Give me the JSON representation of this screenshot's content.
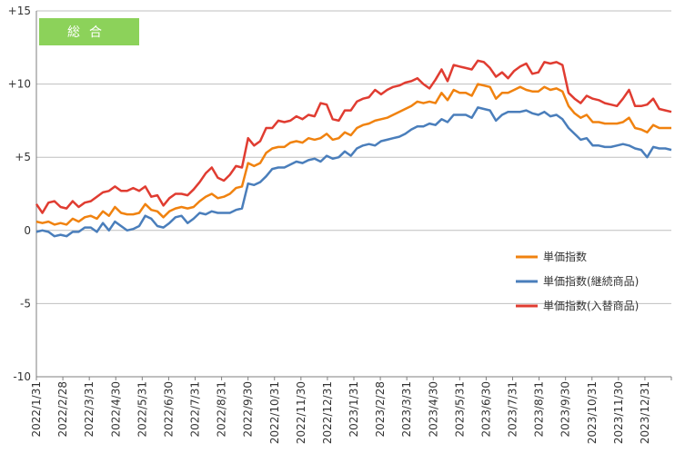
{
  "chart_data": {
    "type": "line",
    "title": "",
    "badge": "総合",
    "colors": {
      "badge": "#8cd25a",
      "grid": "#bfbfbf",
      "axis": "#7f7f7f"
    },
    "ylim": [
      -10,
      15
    ],
    "yticks": [
      {
        "value": 15,
        "label": "+15"
      },
      {
        "value": 10,
        "label": "+10"
      },
      {
        "value": 5,
        "label": "+5"
      },
      {
        "value": 0,
        "label": "0"
      },
      {
        "value": -5,
        "label": "-5"
      },
      {
        "value": -10,
        "label": "-10"
      }
    ],
    "xtick_labels": [
      "2022/1/31",
      "2022/2/28",
      "2022/3/31",
      "2022/4/30",
      "2022/5/31",
      "2022/6/30",
      "2022/7/31",
      "2022/8/31",
      "2022/9/30",
      "2022/10/31",
      "2022/11/30",
      "2022/12/31",
      "2023/1/31",
      "2023/2/28",
      "2023/3/31",
      "2023/4/30",
      "2023/5/31",
      "2023/6/30",
      "2023/7/31",
      "2023/8/31",
      "2023/9/30",
      "2023/10/31",
      "2023/11/30",
      "2023/12/31"
    ],
    "grid": "horizontal",
    "legend_position": "right",
    "series": [
      {
        "name": "単価指数",
        "color": "#f0820f",
        "values": [
          0.6,
          0.5,
          0.6,
          0.4,
          0.5,
          0.4,
          0.8,
          0.6,
          0.9,
          1.0,
          0.8,
          1.3,
          1.0,
          1.6,
          1.2,
          1.1,
          1.1,
          1.2,
          1.8,
          1.4,
          1.3,
          0.9,
          1.3,
          1.5,
          1.6,
          1.5,
          1.6,
          2.0,
          2.3,
          2.5,
          2.2,
          2.3,
          2.5,
          2.9,
          3.0,
          4.6,
          4.4,
          4.6,
          5.3,
          5.6,
          5.7,
          5.7,
          6.0,
          6.1,
          6.0,
          6.3,
          6.2,
          6.3,
          6.6,
          6.2,
          6.3,
          6.7,
          6.5,
          7.0,
          7.2,
          7.3,
          7.5,
          7.6,
          7.7,
          7.9,
          8.1,
          8.3,
          8.5,
          8.8,
          8.7,
          8.8,
          8.7,
          9.4,
          8.9,
          9.6,
          9.4,
          9.4,
          9.2,
          10.0,
          9.9,
          9.8,
          9.0,
          9.4,
          9.4,
          9.6,
          9.8,
          9.6,
          9.5,
          9.5,
          9.8,
          9.6,
          9.7,
          9.5,
          8.5,
          8.0,
          7.7,
          7.9,
          7.4,
          7.4,
          7.3,
          7.3,
          7.3,
          7.4,
          7.7,
          7.0,
          6.9,
          6.7,
          7.2,
          7.0,
          7.0,
          7.0
        ]
      },
      {
        "name": "単価指数(継続商品)",
        "color": "#4a7ebb",
        "values": [
          -0.1,
          0.0,
          -0.1,
          -0.4,
          -0.3,
          -0.4,
          -0.1,
          -0.1,
          0.2,
          0.2,
          -0.1,
          0.5,
          0.0,
          0.6,
          0.3,
          0.0,
          0.1,
          0.3,
          1.0,
          0.8,
          0.3,
          0.2,
          0.5,
          0.9,
          1.0,
          0.5,
          0.8,
          1.2,
          1.1,
          1.3,
          1.2,
          1.2,
          1.2,
          1.4,
          1.5,
          3.2,
          3.1,
          3.3,
          3.7,
          4.2,
          4.3,
          4.3,
          4.5,
          4.7,
          4.6,
          4.8,
          4.9,
          4.7,
          5.1,
          4.9,
          5.0,
          5.4,
          5.1,
          5.6,
          5.8,
          5.9,
          5.8,
          6.1,
          6.2,
          6.3,
          6.4,
          6.6,
          6.9,
          7.1,
          7.1,
          7.3,
          7.2,
          7.6,
          7.4,
          7.9,
          7.9,
          7.9,
          7.7,
          8.4,
          8.3,
          8.2,
          7.5,
          7.9,
          8.1,
          8.1,
          8.1,
          8.2,
          8.0,
          7.9,
          8.1,
          7.8,
          7.9,
          7.6,
          7.0,
          6.6,
          6.2,
          6.3,
          5.8,
          5.8,
          5.7,
          5.7,
          5.8,
          5.9,
          5.8,
          5.6,
          5.5,
          5.0,
          5.7,
          5.6,
          5.6,
          5.5
        ]
      },
      {
        "name": "単価指数(入替商品)",
        "color": "#e03c31",
        "values": [
          1.8,
          1.2,
          1.9,
          2.0,
          1.6,
          1.5,
          2.0,
          1.6,
          1.9,
          2.0,
          2.3,
          2.6,
          2.7,
          3.0,
          2.7,
          2.7,
          2.9,
          2.7,
          3.0,
          2.3,
          2.4,
          1.7,
          2.2,
          2.5,
          2.5,
          2.4,
          2.8,
          3.3,
          3.9,
          4.3,
          3.6,
          3.4,
          3.8,
          4.4,
          4.3,
          6.3,
          5.8,
          6.1,
          7.0,
          7.0,
          7.5,
          7.4,
          7.5,
          7.8,
          7.6,
          7.9,
          7.8,
          8.7,
          8.6,
          7.6,
          7.5,
          8.2,
          8.2,
          8.8,
          9.0,
          9.1,
          9.6,
          9.3,
          9.6,
          9.8,
          9.9,
          10.1,
          10.2,
          10.4,
          10.0,
          9.7,
          10.3,
          11.0,
          10.2,
          11.3,
          11.2,
          11.1,
          11.0,
          11.6,
          11.5,
          11.1,
          10.5,
          10.8,
          10.4,
          10.9,
          11.2,
          11.4,
          10.7,
          10.8,
          11.5,
          11.4,
          11.5,
          11.3,
          9.4,
          9.0,
          8.7,
          9.2,
          9.0,
          8.9,
          8.7,
          8.6,
          8.5,
          9.0,
          9.6,
          8.5,
          8.5,
          8.6,
          9.0,
          8.3,
          8.2,
          8.1
        ]
      }
    ]
  }
}
